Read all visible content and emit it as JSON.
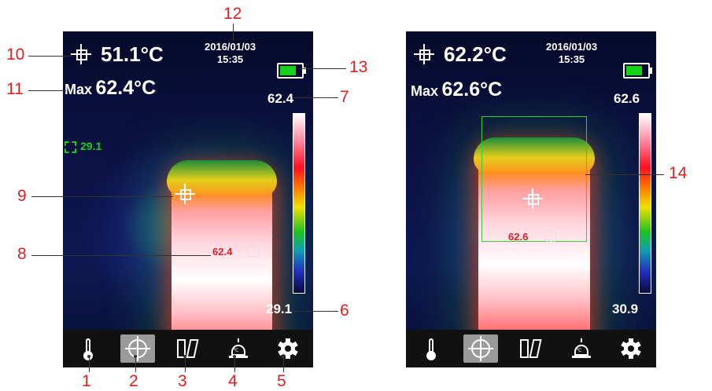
{
  "screen_a": {
    "spot_temp": "51.1°C",
    "max_label": "Max",
    "max_temp": "62.4°C",
    "date": "2016/01/03",
    "time": "15:35",
    "scale_max": "62.4",
    "scale_min": "29.1",
    "area_temp": "29.1",
    "hot_spot_temp": "62.4"
  },
  "screen_b": {
    "spot_temp": "62.2°C",
    "max_label": "Max",
    "max_temp": "62.6°C",
    "date": "2016/01/03",
    "time": "15:35",
    "scale_max": "62.6",
    "scale_min": "30.9",
    "hot_spot_temp": "62.6"
  },
  "toolbar": {
    "icons": [
      "thermometer-icon",
      "target-icon",
      "palette-icon",
      "alarm-icon",
      "gear-icon"
    ],
    "selected_index": 1,
    "alarm_icon_text": "℃"
  },
  "callouts": {
    "n1": "1",
    "n2": "2",
    "n3": "3",
    "n4": "4",
    "n5": "5",
    "n6": "6",
    "n7": "7",
    "n8": "8",
    "n9": "9",
    "n10": "10",
    "n11": "11",
    "n12": "12",
    "n13": "13",
    "n14": "14"
  },
  "colors": {
    "callout": "#e02020",
    "battery_fill": "#18d218",
    "hot_spot_text": "#e02020",
    "area_text": "#18d018",
    "roi_box": "#3cc83c"
  }
}
